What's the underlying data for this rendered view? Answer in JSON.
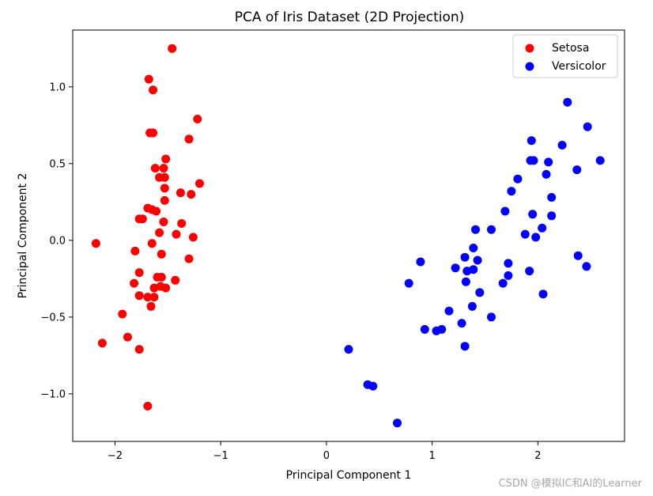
{
  "chart_data": {
    "type": "scatter",
    "title": "PCA of Iris Dataset (2D Projection)",
    "xlabel": "Principal Component 1",
    "ylabel": "Principal Component 2",
    "xlim": [
      -2.4,
      2.82
    ],
    "ylim": [
      -1.31,
      1.37
    ],
    "xticks": [
      -2,
      -1,
      0,
      1,
      2
    ],
    "xtick_labels": [
      "−2",
      "−1",
      "0",
      "1",
      "2"
    ],
    "yticks": [
      -1.0,
      -0.5,
      0.0,
      0.5,
      1.0
    ],
    "ytick_labels": [
      "−1.0",
      "−0.5",
      "0.0",
      "0.5",
      "1.0"
    ],
    "grid": false,
    "legend": "top-right",
    "series": [
      {
        "name": "Setosa",
        "color": "#ff0000",
        "points": [
          [
            -1.46,
            1.25
          ],
          [
            -1.68,
            1.05
          ],
          [
            -1.64,
            0.98
          ],
          [
            -1.22,
            0.79
          ],
          [
            -1.67,
            0.7
          ],
          [
            -1.64,
            0.7
          ],
          [
            -1.3,
            0.66
          ],
          [
            -1.52,
            0.53
          ],
          [
            -1.62,
            0.47
          ],
          [
            -1.54,
            0.47
          ],
          [
            -1.58,
            0.41
          ],
          [
            -1.53,
            0.41
          ],
          [
            -1.53,
            0.34
          ],
          [
            -1.2,
            0.37
          ],
          [
            -1.38,
            0.31
          ],
          [
            -1.28,
            0.3
          ],
          [
            -1.53,
            0.26
          ],
          [
            -1.69,
            0.21
          ],
          [
            -1.65,
            0.2
          ],
          [
            -1.61,
            0.19
          ],
          [
            -1.77,
            0.14
          ],
          [
            -1.74,
            0.14
          ],
          [
            -1.54,
            0.12
          ],
          [
            -1.37,
            0.11
          ],
          [
            -1.58,
            0.05
          ],
          [
            -1.42,
            0.04
          ],
          [
            -1.26,
            0.02
          ],
          [
            -2.18,
            -0.02
          ],
          [
            -1.65,
            -0.02
          ],
          [
            -1.81,
            -0.07
          ],
          [
            -1.56,
            -0.09
          ],
          [
            -1.3,
            -0.12
          ],
          [
            -1.77,
            -0.21
          ],
          [
            -1.6,
            -0.24
          ],
          [
            -1.56,
            -0.24
          ],
          [
            -1.43,
            -0.26
          ],
          [
            -1.82,
            -0.28
          ],
          [
            -1.57,
            -0.3
          ],
          [
            -1.63,
            -0.31
          ],
          [
            -1.52,
            -0.31
          ],
          [
            -1.77,
            -0.36
          ],
          [
            -1.69,
            -0.37
          ],
          [
            -1.63,
            -0.37
          ],
          [
            -1.66,
            -0.43
          ],
          [
            -1.93,
            -0.48
          ],
          [
            -1.88,
            -0.63
          ],
          [
            -2.12,
            -0.67
          ],
          [
            -1.77,
            -0.71
          ],
          [
            -1.69,
            -1.08
          ]
        ]
      },
      {
        "name": "Versicolor",
        "color": "#0000ff",
        "points": [
          [
            2.28,
            0.9
          ],
          [
            2.47,
            0.74
          ],
          [
            1.94,
            0.65
          ],
          [
            2.23,
            0.62
          ],
          [
            2.59,
            0.52
          ],
          [
            1.93,
            0.52
          ],
          [
            1.96,
            0.52
          ],
          [
            2.1,
            0.51
          ],
          [
            2.37,
            0.46
          ],
          [
            2.08,
            0.43
          ],
          [
            1.81,
            0.4
          ],
          [
            1.75,
            0.32
          ],
          [
            2.13,
            0.28
          ],
          [
            1.69,
            0.19
          ],
          [
            1.95,
            0.17
          ],
          [
            2.13,
            0.16
          ],
          [
            2.04,
            0.08
          ],
          [
            1.41,
            0.07
          ],
          [
            1.56,
            0.07
          ],
          [
            1.88,
            0.04
          ],
          [
            1.98,
            0.02
          ],
          [
            1.39,
            -0.05
          ],
          [
            1.31,
            -0.11
          ],
          [
            1.43,
            -0.13
          ],
          [
            0.89,
            -0.14
          ],
          [
            1.72,
            -0.15
          ],
          [
            1.22,
            -0.18
          ],
          [
            1.39,
            -0.19
          ],
          [
            1.33,
            -0.2
          ],
          [
            1.92,
            -0.2
          ],
          [
            1.72,
            -0.23
          ],
          [
            2.38,
            -0.1
          ],
          [
            2.46,
            -0.17
          ],
          [
            1.32,
            -0.27
          ],
          [
            1.67,
            -0.28
          ],
          [
            0.78,
            -0.28
          ],
          [
            1.45,
            -0.34
          ],
          [
            2.05,
            -0.35
          ],
          [
            1.38,
            -0.43
          ],
          [
            1.16,
            -0.46
          ],
          [
            1.56,
            -0.5
          ],
          [
            1.28,
            -0.54
          ],
          [
            0.93,
            -0.58
          ],
          [
            1.09,
            -0.58
          ],
          [
            1.04,
            -0.59
          ],
          [
            1.31,
            -0.69
          ],
          [
            0.21,
            -0.71
          ],
          [
            0.39,
            -0.94
          ],
          [
            0.44,
            -0.95
          ],
          [
            0.67,
            -1.19
          ]
        ]
      }
    ]
  },
  "watermark": "CSDN @模拟IC和AI的Learner"
}
